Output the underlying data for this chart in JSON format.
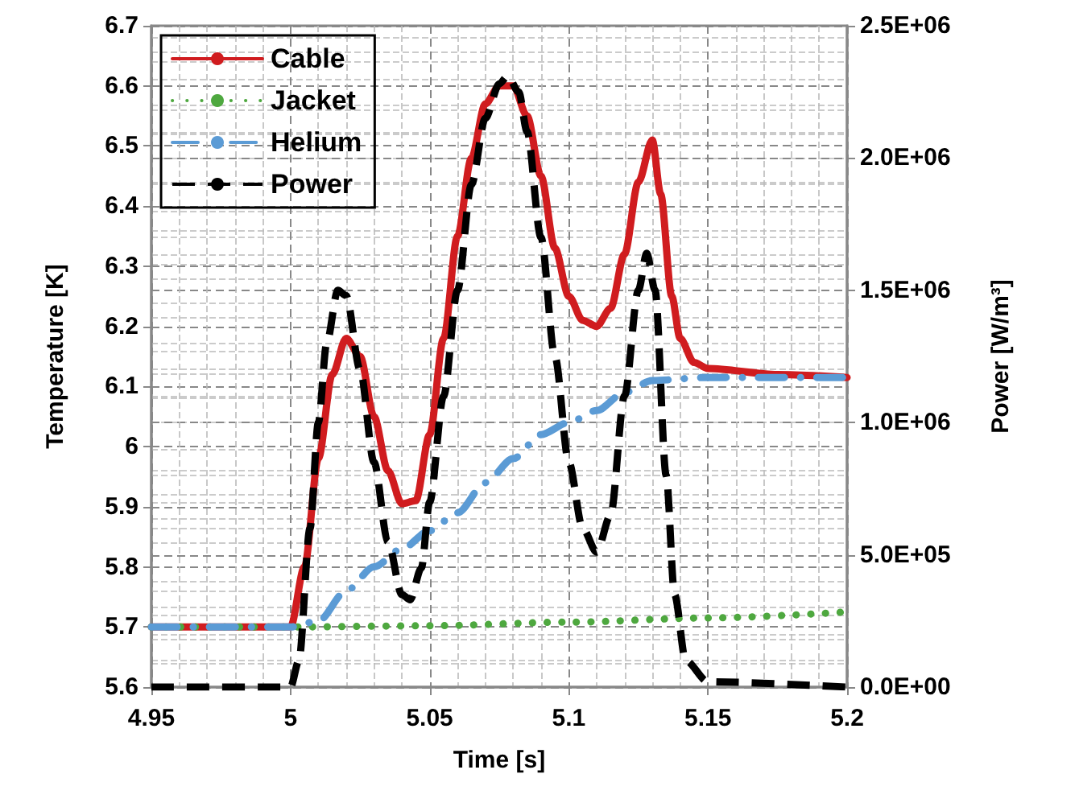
{
  "chart_data": {
    "type": "line",
    "xlabel": "Time [s]",
    "ylabel": "Temperature [K]",
    "y2label": "Power [W/m³]",
    "xlim": [
      4.95,
      5.2
    ],
    "xticks": [
      4.95,
      5,
      5.05,
      5.1,
      5.15,
      5.2
    ],
    "ylim": [
      5.6,
      6.7
    ],
    "yticks": [
      5.6,
      5.7,
      5.8,
      5.9,
      6,
      6.1,
      6.2,
      6.3,
      6.4,
      6.5,
      6.6,
      6.7
    ],
    "y2lim": [
      0,
      2500000
    ],
    "y2ticks": [
      {
        "value": 0,
        "label": "0.0E+00"
      },
      {
        "value": 500000,
        "label": "5.0E+05"
      },
      {
        "value": 1000000,
        "label": "1.0E+06"
      },
      {
        "value": 1500000,
        "label": "1.5E+06"
      },
      {
        "value": 2000000,
        "label": "2.0E+06"
      },
      {
        "value": 2500000,
        "label": "2.5E+06"
      }
    ],
    "grid": true,
    "legend": "top left",
    "marker": "none",
    "series": [
      {
        "name": "Cable",
        "color": "#d01c1f",
        "line_style": "solid",
        "x": [
          4.95,
          5.0,
          5.005,
          5.01,
          5.015,
          5.02,
          5.025,
          5.03,
          5.035,
          5.04,
          5.045,
          5.05,
          5.055,
          5.06,
          5.065,
          5.07,
          5.075,
          5.08,
          5.085,
          5.09,
          5.095,
          5.1,
          5.105,
          5.11,
          5.115,
          5.12,
          5.125,
          5.13,
          5.133,
          5.137,
          5.14,
          5.145,
          5.15,
          5.175,
          5.2
        ],
        "values": [
          5.7,
          5.7,
          5.8,
          5.98,
          6.12,
          6.18,
          6.15,
          6.05,
          5.96,
          5.905,
          5.91,
          6.02,
          6.18,
          6.35,
          6.48,
          6.57,
          6.6,
          6.6,
          6.55,
          6.45,
          6.33,
          6.25,
          6.21,
          6.2,
          6.23,
          6.32,
          6.44,
          6.51,
          6.42,
          6.25,
          6.18,
          6.14,
          6.13,
          6.12,
          6.115
        ]
      },
      {
        "name": "Jacket",
        "color": "#4ea83f",
        "line_style": "dotted",
        "x": [
          4.95,
          5.0,
          5.05,
          5.1,
          5.15,
          5.2
        ],
        "values": [
          5.7,
          5.7,
          5.702,
          5.708,
          5.715,
          5.725
        ]
      },
      {
        "name": "Helium",
        "color": "#5b9bd5",
        "line_style": "dashdot",
        "x": [
          4.95,
          5.0,
          5.01,
          5.02,
          5.03,
          5.04,
          5.05,
          5.06,
          5.07,
          5.08,
          5.09,
          5.1,
          5.11,
          5.12,
          5.13,
          5.15,
          5.2
        ],
        "values": [
          5.7,
          5.7,
          5.71,
          5.76,
          5.8,
          5.83,
          5.86,
          5.89,
          5.94,
          5.98,
          6.02,
          6.04,
          6.06,
          6.09,
          6.11,
          6.115,
          6.115
        ]
      },
      {
        "name": "Power",
        "color": "#000000",
        "line_style": "dashed",
        "axis": "y2",
        "x": [
          4.95,
          5.0,
          5.003,
          5.007,
          5.01,
          5.013,
          5.017,
          5.02,
          5.025,
          5.03,
          5.035,
          5.04,
          5.043,
          5.047,
          5.05,
          5.055,
          5.06,
          5.065,
          5.07,
          5.075,
          5.078,
          5.082,
          5.085,
          5.09,
          5.095,
          5.1,
          5.105,
          5.11,
          5.115,
          5.12,
          5.125,
          5.128,
          5.131,
          5.135,
          5.138,
          5.142,
          5.15,
          5.2
        ],
        "values": [
          0,
          0,
          100000,
          600000,
          1000000,
          1300000,
          1500000,
          1480000,
          1200000,
          850000,
          550000,
          350000,
          330000,
          450000,
          700000,
          1100000,
          1500000,
          1900000,
          2150000,
          2280000,
          2310000,
          2250000,
          2100000,
          1700000,
          1250000,
          850000,
          600000,
          510000,
          650000,
          1100000,
          1500000,
          1640000,
          1500000,
          800000,
          350000,
          100000,
          20000,
          0
        ]
      }
    ]
  }
}
